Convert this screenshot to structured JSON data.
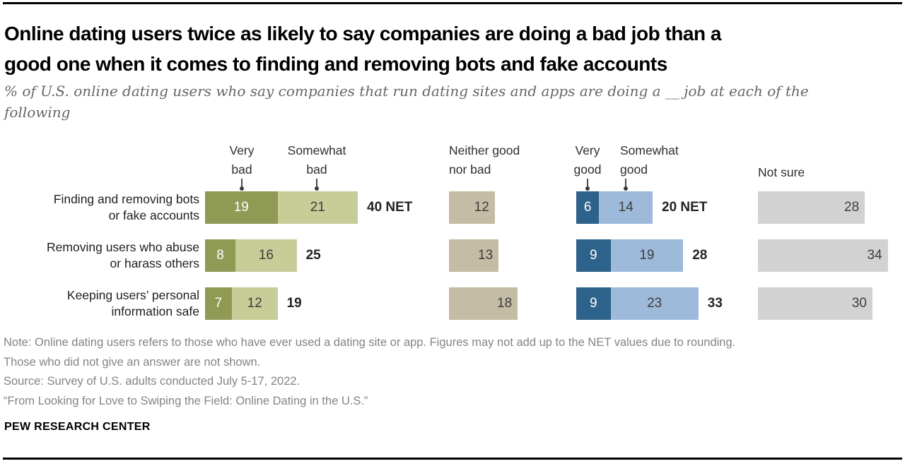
{
  "header": {
    "title": "Online dating users twice as likely to say companies are doing a bad job than a\ngood one when it comes to finding and removing bots and fake accounts",
    "subtitle": "% of U.S. online dating users who say companies that run dating sites and apps are doing a __ job at each of the\nfollowing"
  },
  "colors": {
    "very_bad": "#8F9A54",
    "somewhat_bad": "#C8CC97",
    "neither": "#C4BCA4",
    "very_good": "#2D628A",
    "somewhat_good": "#9DBADA",
    "not_sure": "#D2D2D2",
    "value_text_on_dark": "#FFFFFF",
    "value_text_on_light": "#3D3D3D"
  },
  "chart_data": {
    "type": "bar",
    "orientation": "horizontal",
    "stacked_groups": true,
    "unit": "%",
    "title": "Online dating users twice as likely to say companies are doing a bad job than a good one when it comes to finding and removing bots and fake accounts",
    "column_headers": [
      {
        "label": "Very\nbad"
      },
      {
        "label": "Somewhat\nbad"
      },
      {
        "label": "Neither good\nnor bad"
      },
      {
        "label": "Very\ngood"
      },
      {
        "label": "Somewhat\ngood"
      },
      {
        "label": "Not sure"
      }
    ],
    "categories": [
      "Finding and removing bots\nor fake accounts",
      "Removing users who abuse\nor harass others",
      "Keeping users’ personal\ninformation safe"
    ],
    "series": [
      {
        "name": "Very bad",
        "values": [
          19,
          8,
          7
        ]
      },
      {
        "name": "Somewhat bad",
        "values": [
          21,
          16,
          12
        ]
      },
      {
        "name": "Neither good nor bad",
        "values": [
          12,
          13,
          18
        ]
      },
      {
        "name": "Very good",
        "values": [
          6,
          9,
          9
        ]
      },
      {
        "name": "Somewhat good",
        "values": [
          14,
          19,
          23
        ]
      },
      {
        "name": "Not sure",
        "values": [
          28,
          34,
          30
        ]
      }
    ],
    "net_bad": [
      "40 NET",
      "25",
      "19"
    ],
    "net_good": [
      "20 NET",
      "28",
      "33"
    ]
  },
  "footer": {
    "note": "Note: Online dating users refers to those who have ever used a dating site or app. Figures may not add up to the NET values due to rounding.\nThose who did not give an answer are not shown.",
    "source": "Source: Survey of U.S. adults conducted July 5-17, 2022.",
    "report": "“From Looking for Love to Swiping the Field: Online Dating in the U.S.”",
    "brand": "PEW RESEARCH CENTER"
  }
}
